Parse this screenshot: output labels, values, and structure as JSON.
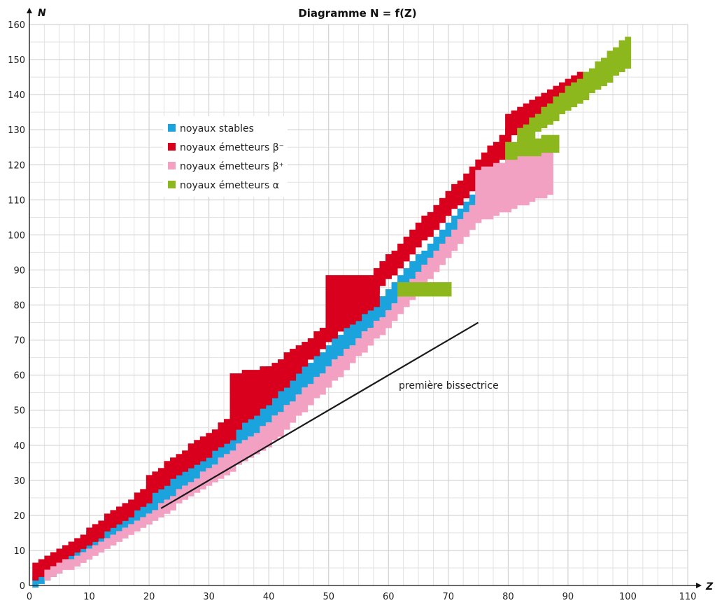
{
  "chart_data": {
    "type": "scatter",
    "title": "Diagramme N = f(Z)",
    "xlabel": "Z",
    "ylabel": "N",
    "xlim": [
      0,
      110
    ],
    "ylim": [
      0,
      160
    ],
    "x_ticks": [
      0,
      10,
      20,
      30,
      40,
      50,
      60,
      70,
      80,
      90,
      100,
      110
    ],
    "y_ticks": [
      0,
      10,
      20,
      30,
      40,
      50,
      60,
      70,
      80,
      90,
      100,
      110,
      120,
      130,
      140,
      150,
      160
    ],
    "grid": true,
    "legend_position": "upper-left",
    "annotation": {
      "text": "première bissectrice",
      "line": [
        [
          22,
          22
        ],
        [
          75,
          75
        ]
      ]
    },
    "series": [
      {
        "key": "stable",
        "name": "noyaux stables",
        "color": "#1aa3dc",
        "bands": [
          {
            "z": [
              1,
              10
            ],
            "n_lo": [
              0,
              10
            ],
            "n_hi": [
              2,
              12
            ]
          },
          {
            "z": [
              10,
              20
            ],
            "n_lo": [
              10,
              20
            ],
            "n_hi": [
              12,
              24
            ]
          },
          {
            "z": [
              20,
              40
            ],
            "n_lo": [
              20,
              46
            ],
            "n_hi": [
              26,
              52
            ]
          },
          {
            "z": [
              40,
              60
            ],
            "n_lo": [
              46,
              78
            ],
            "n_hi": [
              52,
              84
            ]
          },
          {
            "z": [
              60,
              83
            ],
            "n_lo": [
              78,
              124
            ],
            "n_hi": [
              84,
              128
            ]
          }
        ]
      },
      {
        "key": "beta_minus",
        "name": "noyaux émetteurs β⁻",
        "color": "#d8001c",
        "bands": [
          {
            "z": [
              1,
              10
            ],
            "n_lo": [
              2,
              12
            ],
            "n_hi": [
              6,
              15
            ]
          },
          {
            "z": [
              10,
              20
            ],
            "n_lo": [
              12,
              24
            ],
            "n_hi": [
              16,
              28
            ]
          },
          {
            "z": [
              20,
              34
            ],
            "n_lo": [
              26,
              42
            ],
            "n_hi": [
              31,
              48
            ]
          },
          {
            "z": [
              34,
              40
            ],
            "n_lo": [
              44,
              52
            ],
            "n_hi": [
              60,
              62
            ]
          },
          {
            "z": [
              40,
              50
            ],
            "n_lo": [
              52,
              70
            ],
            "n_hi": [
              62,
              74
            ]
          },
          {
            "z": [
              50,
              58
            ],
            "n_lo": [
              70,
              80
            ],
            "n_hi": [
              88,
              88
            ]
          },
          {
            "z": [
              58,
              80
            ],
            "n_lo": [
              84,
              124
            ],
            "n_hi": [
              90,
              130
            ]
          },
          {
            "z": [
              80,
              92
            ],
            "n_lo": [
              128,
              140
            ],
            "n_hi": [
              134,
              146
            ]
          }
        ]
      },
      {
        "key": "beta_plus",
        "name": "noyaux émetteurs β⁺",
        "color": "#f2a1c3",
        "bands": [
          {
            "z": [
              3,
              10
            ],
            "n_lo": [
              2,
              8
            ],
            "n_hi": [
              4,
              10
            ]
          },
          {
            "z": [
              10,
              20
            ],
            "n_lo": [
              8,
              18
            ],
            "n_hi": [
              10,
              20
            ]
          },
          {
            "z": [
              20,
              40
            ],
            "n_lo": [
              18,
              40
            ],
            "n_hi": [
              20,
              46
            ]
          },
          {
            "z": [
              40,
              60
            ],
            "n_lo": [
              40,
              74
            ],
            "n_hi": [
              46,
              78
            ]
          },
          {
            "z": [
              60,
              75
            ],
            "n_lo": [
              74,
              104
            ],
            "n_hi": [
              78,
              110
            ]
          },
          {
            "z": [
              75,
              87
            ],
            "n_lo": [
              104,
              112
            ],
            "n_hi": [
              118,
              124
            ]
          }
        ]
      },
      {
        "key": "alpha",
        "name": "noyaux émetteurs α",
        "color": "#8cb81e",
        "bands": [
          {
            "z": [
              62,
              70
            ],
            "n_lo": [
              83,
              83
            ],
            "n_hi": [
              86,
              86
            ]
          },
          {
            "z": [
              80,
              88
            ],
            "n_lo": [
              122,
              124
            ],
            "n_hi": [
              126,
              128
            ]
          },
          {
            "z": [
              82,
              100
            ],
            "n_lo": [
              126,
              148
            ],
            "n_hi": [
              130,
              156
            ]
          }
        ]
      }
    ]
  }
}
